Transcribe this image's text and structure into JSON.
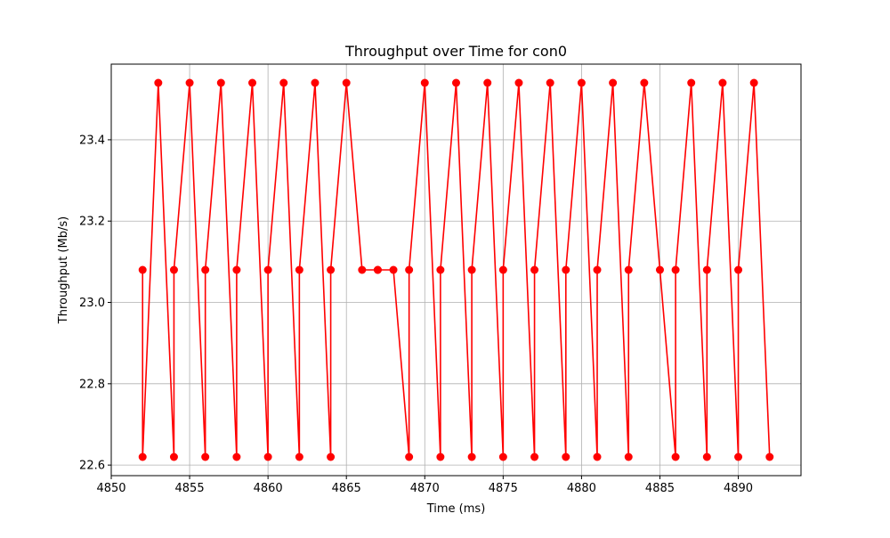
{
  "chart_data": {
    "type": "line",
    "title": "Throughput over Time for con0",
    "xlabel": "Time (ms)",
    "ylabel": "Throughput (Mb/s)",
    "xlim": [
      4850,
      4894
    ],
    "ylim": [
      22.574,
      23.586
    ],
    "grid": true,
    "x_ticks": [
      4850,
      4855,
      4860,
      4865,
      4870,
      4875,
      4880,
      4885,
      4890
    ],
    "y_ticks": [
      22.6,
      22.8,
      23.0,
      23.2,
      23.4
    ],
    "x_tick_labels": [
      "4850",
      "4855",
      "4860",
      "4865",
      "4870",
      "4875",
      "4880",
      "4885",
      "4890"
    ],
    "y_tick_labels": [
      "22.6",
      "22.8",
      "23.0",
      "23.2",
      "23.4"
    ],
    "series": [
      {
        "color": "#ff0000",
        "marker": "circle",
        "points": [
          [
            4852,
            23.08
          ],
          [
            4852,
            22.62
          ],
          [
            4853,
            23.54
          ],
          [
            4854,
            22.62
          ],
          [
            4854,
            23.08
          ],
          [
            4855,
            23.54
          ],
          [
            4856,
            22.62
          ],
          [
            4856,
            23.08
          ],
          [
            4857,
            23.54
          ],
          [
            4858,
            22.62
          ],
          [
            4858,
            23.08
          ],
          [
            4859,
            23.54
          ],
          [
            4860,
            22.62
          ],
          [
            4860,
            23.08
          ],
          [
            4861,
            23.54
          ],
          [
            4862,
            22.62
          ],
          [
            4862,
            23.08
          ],
          [
            4863,
            23.54
          ],
          [
            4864,
            22.62
          ],
          [
            4864,
            23.08
          ],
          [
            4865,
            23.54
          ],
          [
            4866,
            23.08
          ],
          [
            4867,
            23.08
          ],
          [
            4867,
            23.08
          ],
          [
            4868,
            23.08
          ],
          [
            4869,
            22.62
          ],
          [
            4869,
            23.08
          ],
          [
            4870,
            23.54
          ],
          [
            4871,
            22.62
          ],
          [
            4871,
            23.08
          ],
          [
            4872,
            23.54
          ],
          [
            4873,
            22.62
          ],
          [
            4873,
            23.08
          ],
          [
            4874,
            23.54
          ],
          [
            4875,
            22.62
          ],
          [
            4875,
            23.08
          ],
          [
            4876,
            23.54
          ],
          [
            4877,
            22.62
          ],
          [
            4877,
            23.08
          ],
          [
            4878,
            23.54
          ],
          [
            4879,
            22.62
          ],
          [
            4879,
            23.08
          ],
          [
            4880,
            23.54
          ],
          [
            4881,
            22.62
          ],
          [
            4881,
            23.08
          ],
          [
            4882,
            23.54
          ],
          [
            4883,
            22.62
          ],
          [
            4883,
            23.08
          ],
          [
            4884,
            23.54
          ],
          [
            4885,
            23.08
          ],
          [
            4886,
            22.62
          ],
          [
            4886,
            23.08
          ],
          [
            4887,
            23.54
          ],
          [
            4888,
            22.62
          ],
          [
            4888,
            23.08
          ],
          [
            4889,
            23.54
          ],
          [
            4890,
            22.62
          ],
          [
            4890,
            23.08
          ],
          [
            4891,
            23.54
          ],
          [
            4892,
            22.62
          ]
        ]
      }
    ]
  }
}
